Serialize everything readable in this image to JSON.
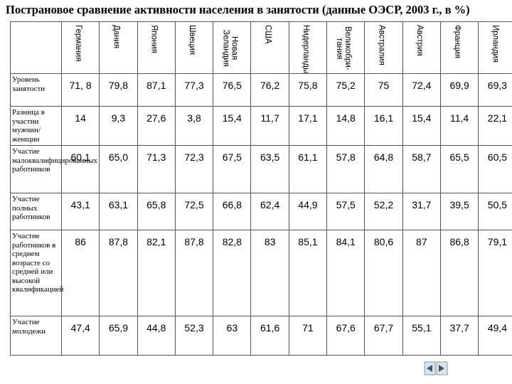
{
  "title": "Пострановое сравнение активности населения в занятости (данные ОЭСР, 2003 г., в %)",
  "table": {
    "columns": [
      "Германия",
      "Дания",
      "Япония",
      "Швеция",
      "Новая Зеландия",
      "США",
      "Нидерланды",
      "Великобри-тания",
      "Австралия",
      "Австрия",
      "Франция",
      "Ирландия"
    ],
    "rows": [
      {
        "label": "Уровень занятости",
        "values": [
          "71, 8",
          "79,8",
          "87,1",
          "77,3",
          "76,5",
          "76,2",
          "75,8",
          "75,2",
          "75",
          "72,4",
          "69,9",
          "69,3"
        ]
      },
      {
        "label": "Разница в участии мужчин/ женщин",
        "values": [
          "14",
          "9,3",
          "27,6",
          "3,8",
          "15,4",
          "11,7",
          "17,1",
          "14,8",
          "16,1",
          "15,4",
          "11,4",
          "22,1"
        ]
      },
      {
        "label": "Участие малоквалифицированных работников",
        "values": [
          "60,1",
          "65,0",
          "71,3",
          "72,3",
          "67,5",
          "63,5",
          "61,1",
          "57,8",
          "64,8",
          "58,7",
          "65,5",
          "60,5"
        ]
      },
      {
        "label": "Участие полных работников",
        "values": [
          "43,1",
          "63,1",
          "65,8",
          "72,5",
          "66,8",
          "62,4",
          "44,9",
          "57,5",
          "52,2",
          "31,7",
          "39,5",
          "50,5"
        ]
      },
      {
        "label": "Участие работников в среднем возрасте со средней или высокой квалификацией",
        "values": [
          "86",
          "87,8",
          "82,1",
          "87,8",
          "82,8",
          "83",
          "85,1",
          "84,1",
          "80,6",
          "87",
          "86,8",
          "79,1"
        ]
      },
      {
        "label": "Участие молодежи",
        "values": [
          "47,4",
          "65,9",
          "44,8",
          "52,3",
          "63",
          "61,6",
          "71",
          "67,6",
          "67,7",
          "55,1",
          "37,7",
          "49,4"
        ]
      }
    ]
  }
}
